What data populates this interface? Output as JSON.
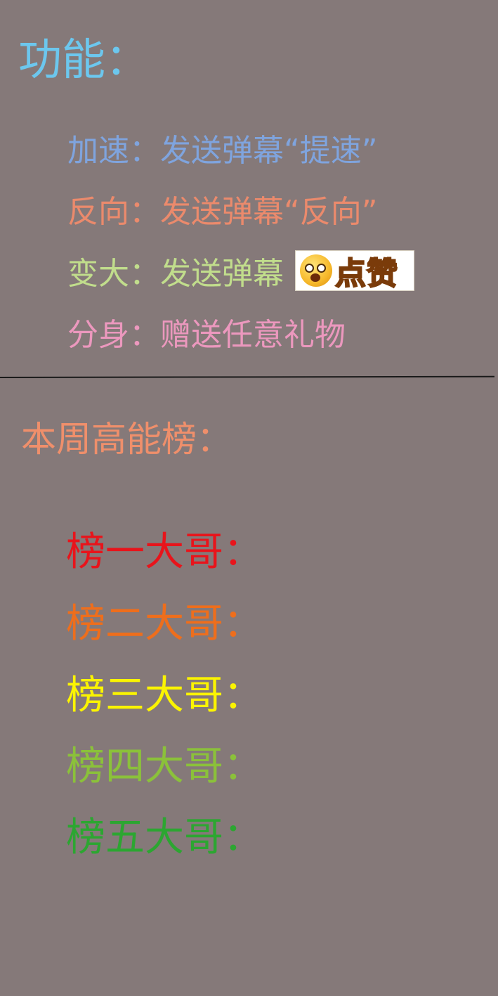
{
  "features": {
    "title": "功能：",
    "items": [
      {
        "label": "加速：发送弹幕“提速”",
        "color": "#7fa4de"
      },
      {
        "label": "反向：发送弹幕“反向”",
        "color": "#eb8a6c"
      },
      {
        "label": "变大：发送弹幕",
        "badge": "点赞",
        "badge_icon": "like-emoji-icon",
        "color": "#c1dd8c"
      },
      {
        "label": "分身：赠送任意礼物",
        "color": "#ec98be"
      }
    ]
  },
  "leaderboard": {
    "title": "本周高能榜：",
    "ranks": [
      {
        "label": "榜一大哥：",
        "color": "#e8141b"
      },
      {
        "label": "榜二大哥：",
        "color": "#ee6e1c"
      },
      {
        "label": "榜三大哥：",
        "color": "#fbf400"
      },
      {
        "label": "榜四大哥：",
        "color": "#8bc13a"
      },
      {
        "label": "榜五大哥：",
        "color": "#2ca631"
      }
    ]
  },
  "colors": {
    "background": "#857979",
    "title": "#6cc7ee",
    "board_title": "#ef8f6b"
  }
}
